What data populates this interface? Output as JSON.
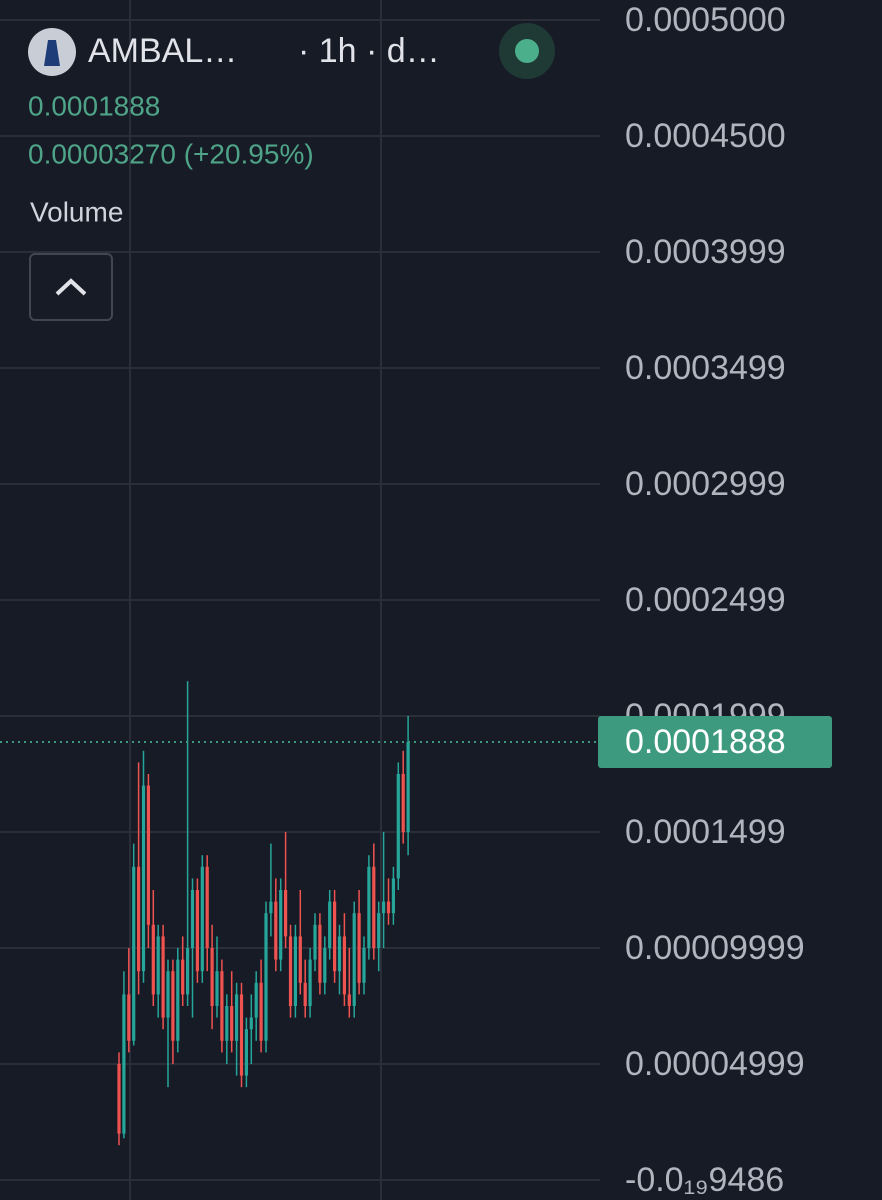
{
  "header": {
    "symbol": "AMBAL…",
    "meta": "· 1h · d…",
    "change": "0.00003270 (+20.95%)",
    "indicator": "Volume"
  },
  "chart_data": {
    "type": "candlestick",
    "ylim": [
      -8.62e-06,
      0.00050862
    ],
    "yticks": [
      {
        "value": 0.0005,
        "label": "0.0005000"
      },
      {
        "value": 0.00045,
        "label": "0.0004500"
      },
      {
        "value": 0.0004,
        "label": "0.0003999"
      },
      {
        "value": 0.00035,
        "label": "0.0003499"
      },
      {
        "value": 0.0003,
        "label": "0.0002999"
      },
      {
        "value": 0.00025,
        "label": "0.0002499"
      },
      {
        "value": 0.0002,
        "label": "0.0001999"
      },
      {
        "value": 0.00015,
        "label": "0.0001499"
      },
      {
        "value": 0.0001,
        "label": "0.00009999"
      },
      {
        "value": 5e-05,
        "label": "0.00004999"
      },
      {
        "value": -9.486e-20,
        "label": "-0.0₁₉9486"
      }
    ],
    "grid": true,
    "up_color": "#26a69a",
    "down_color": "#ef5350",
    "last_price": 0.0001888,
    "open": [
      5e-05,
      2e-05,
      8e-05,
      6e-05,
      0.000135,
      9e-05,
      0.00017,
      0.00011,
      8e-05,
      0.000105,
      7e-05,
      9e-05,
      6e-05,
      9.5e-05,
      8e-05,
      0.0001,
      0.000125,
      9e-05,
      0.000135,
      0.0001,
      7.5e-05,
      9e-05,
      6e-05,
      7.5e-05,
      6e-05,
      8e-05,
      4.5e-05,
      6.5e-05,
      7e-05,
      8.5e-05,
      6e-05,
      0.000115,
      0.00012,
      9.5e-05,
      0.000125,
      0.000105,
      7.5e-05,
      0.000105,
      8.5e-05,
      7.5e-05,
      9.5e-05,
      0.00011,
      8.5e-05,
      0.0001,
      0.00012,
      9e-05,
      0.000105,
      8e-05,
      7.5e-05,
      0.000115,
      8.5e-05,
      0.0001,
      0.000135,
      0.0001,
      0.000115,
      0.00012,
      0.000115,
      0.00013,
      0.000175,
      0.00015
    ],
    "high": [
      5.5e-05,
      9e-05,
      0.0001,
      0.000145,
      0.00018,
      0.000185,
      0.000175,
      0.000125,
      0.00011,
      0.00011,
      9.5e-05,
      9.5e-05,
      0.0001,
      0.000105,
      0.000215,
      0.00013,
      0.00013,
      0.00014,
      0.00014,
      0.00011,
      0.000105,
      9.5e-05,
      8e-05,
      9e-05,
      8.5e-05,
      8.5e-05,
      7e-05,
      8e-05,
      9e-05,
      9.5e-05,
      0.00012,
      0.000145,
      0.00013,
      0.00013,
      0.00015,
      0.00011,
      0.00011,
      0.000125,
      9.5e-05,
      0.0001,
      0.000115,
      0.000115,
      0.000105,
      0.000125,
      0.000125,
      0.00011,
      0.000115,
      0.0001,
      0.00012,
      0.000125,
      0.000105,
      0.00014,
      0.000145,
      0.00012,
      0.00015,
      0.00013,
      0.000135,
      0.00018,
      0.000185,
      0.0002
    ],
    "low": [
      1.5e-05,
      1.8e-05,
      5.5e-05,
      5.8e-05,
      8e-05,
      8.5e-05,
      0.0001,
      7.5e-05,
      7e-05,
      6.5e-05,
      4e-05,
      5e-05,
      5.5e-05,
      7.5e-05,
      7.5e-05,
      7e-05,
      8.5e-05,
      8.5e-05,
      9e-05,
      6.5e-05,
      7e-05,
      5.5e-05,
      5e-05,
      5.5e-05,
      4.5e-05,
      4e-05,
      4e-05,
      5e-05,
      6e-05,
      5.5e-05,
      5.5e-05,
      0.000105,
      9e-05,
      9e-05,
      0.0001,
      7e-05,
      7e-05,
      8e-05,
      7e-05,
      7e-05,
      9e-05,
      8e-05,
      8e-05,
      9.5e-05,
      8.5e-05,
      8e-05,
      7.5e-05,
      7e-05,
      7e-05,
      8e-05,
      8e-05,
      9.5e-05,
      9.5e-05,
      9e-05,
      0.0001,
      0.00011,
      0.00011,
      0.000125,
      0.000145,
      0.00014
    ],
    "close": [
      2e-05,
      8e-05,
      6e-05,
      0.000135,
      9e-05,
      0.00017,
      0.00011,
      8e-05,
      0.000105,
      7e-05,
      9e-05,
      6e-05,
      9.5e-05,
      8e-05,
      0.0001,
      0.000125,
      9e-05,
      0.000135,
      0.0001,
      7.5e-05,
      9e-05,
      6e-05,
      7.5e-05,
      6e-05,
      8e-05,
      4.5e-05,
      6.5e-05,
      7e-05,
      8.5e-05,
      6e-05,
      0.000115,
      0.00012,
      9.5e-05,
      0.000125,
      0.000105,
      7.5e-05,
      0.000105,
      8.5e-05,
      7.5e-05,
      9.5e-05,
      0.00011,
      8.5e-05,
      0.0001,
      0.00012,
      9e-05,
      0.000105,
      8e-05,
      7.5e-05,
      0.000115,
      8.5e-05,
      0.0001,
      0.000135,
      0.0001,
      0.000115,
      0.00012,
      0.000115,
      0.00013,
      0.000175,
      0.00015,
      0.0001888
    ]
  }
}
